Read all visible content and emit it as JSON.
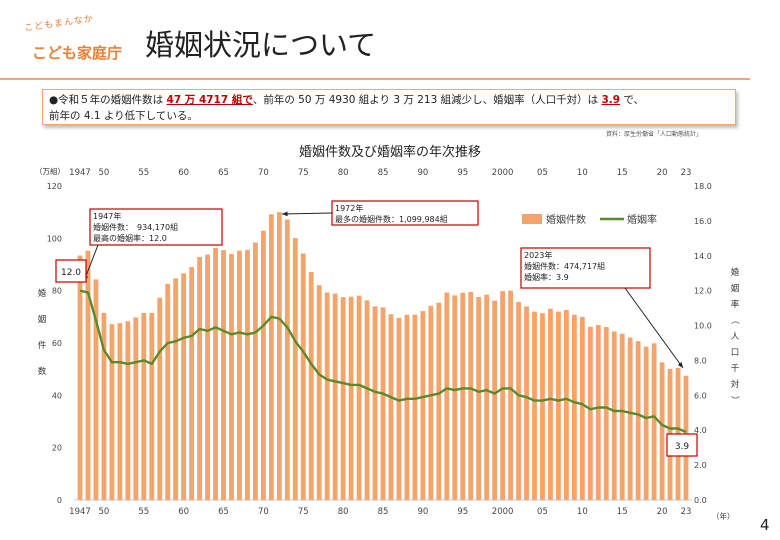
{
  "logo": {
    "arc_text": "こどもまんなか",
    "name": "こども家庭庁"
  },
  "page": {
    "title": "婚姻状況について",
    "number": "4"
  },
  "summary": {
    "bullet": "●",
    "part1": "令和５年の婚姻件数は",
    "highlight1": "47 万 4717 組で",
    "part2": "、前年の 50 万 4930 組より 3 万 213 組減少し、婚姻率（人口千対）は",
    "highlight2": "3.9",
    "part3": "で、",
    "line2": "前年の 4.1 より低下している。"
  },
  "source": "資料：厚生労働省「人口動態統計」",
  "chart_data": {
    "type": "bar",
    "title": "婚姻件数及び婚姻率の年次推移",
    "left_unit": "（万組）",
    "left_axis_label": "婚姻件数",
    "right_axis_label": "婚姻率（人口千対）",
    "x_unit": "（年）",
    "ylim_left": [
      0,
      120
    ],
    "ylim_right": [
      0.0,
      18.0
    ],
    "left_ticks": [
      "0",
      "20",
      "40",
      "60",
      "80",
      "100",
      "120"
    ],
    "right_ticks": [
      "0.0",
      "2.0",
      "4.0",
      "6.0",
      "8.0",
      "10.0",
      "12.0",
      "14.0",
      "16.0",
      "18.0"
    ],
    "x_tick_labels": [
      "1947",
      "50",
      "55",
      "60",
      "65",
      "70",
      "75",
      "80",
      "85",
      "90",
      "95",
      "2000",
      "05",
      "10",
      "15",
      "20",
      "23"
    ],
    "x_tick_years": [
      1947,
      1950,
      1955,
      1960,
      1965,
      1970,
      1975,
      1980,
      1985,
      1990,
      1995,
      2000,
      2005,
      2010,
      2015,
      2020,
      2023
    ],
    "legend": [
      {
        "name": "婚姻件数",
        "color": "#f4a46a"
      },
      {
        "name": "婚姻率",
        "color": "#5a8a2a"
      }
    ],
    "legend_position": "top-right",
    "bar_color": "#f4a46a",
    "line_color": "#5a8a2a",
    "years": [
      1947,
      1948,
      1949,
      1950,
      1951,
      1952,
      1953,
      1954,
      1955,
      1956,
      1957,
      1958,
      1959,
      1960,
      1961,
      1962,
      1963,
      1964,
      1965,
      1966,
      1967,
      1968,
      1969,
      1970,
      1971,
      1972,
      1973,
      1974,
      1975,
      1976,
      1977,
      1978,
      1979,
      1980,
      1981,
      1982,
      1983,
      1984,
      1985,
      1986,
      1987,
      1988,
      1989,
      1990,
      1991,
      1992,
      1993,
      1994,
      1995,
      1996,
      1997,
      1998,
      1999,
      2000,
      2001,
      2002,
      2003,
      2004,
      2005,
      2006,
      2007,
      2008,
      2009,
      2010,
      2011,
      2012,
      2013,
      2014,
      2015,
      2016,
      2017,
      2018,
      2019,
      2020,
      2021,
      2022,
      2023
    ],
    "marriages_man": [
      93.4,
      95.3,
      84.3,
      71.5,
      67.2,
      67.6,
      68.3,
      69.8,
      71.5,
      71.5,
      77.3,
      82.6,
      84.7,
      86.6,
      89.0,
      92.9,
      93.8,
      96.3,
      95.5,
      94.0,
      95.3,
      95.6,
      98.4,
      102.9,
      109.2,
      110.0,
      107.2,
      100.1,
      94.2,
      87.1,
      82.1,
      79.3,
      78.9,
      77.5,
      77.7,
      78.1,
      76.3,
      74.0,
      73.6,
      71.0,
      69.6,
      70.8,
      70.8,
      72.2,
      74.2,
      75.4,
      79.3,
      78.2,
      79.2,
      79.5,
      77.6,
      78.5,
      76.2,
      79.8,
      80.0,
      75.7,
      74.0,
      72.0,
      71.4,
      73.1,
      72.0,
      72.6,
      70.8,
      70.0,
      66.2,
      66.9,
      66.1,
      64.4,
      63.5,
      62.1,
      60.7,
      58.6,
      59.9,
      52.6,
      50.1,
      50.5,
      47.5
    ],
    "marriage_rate": [
      12.0,
      11.9,
      10.3,
      8.6,
      7.9,
      7.9,
      7.8,
      7.9,
      8.0,
      7.8,
      8.5,
      9.0,
      9.1,
      9.3,
      9.4,
      9.8,
      9.7,
      9.9,
      9.7,
      9.5,
      9.6,
      9.5,
      9.6,
      10.0,
      10.5,
      10.4,
      9.9,
      9.1,
      8.5,
      7.8,
      7.2,
      6.9,
      6.8,
      6.7,
      6.6,
      6.6,
      6.4,
      6.2,
      6.1,
      5.9,
      5.7,
      5.8,
      5.8,
      5.9,
      6.0,
      6.1,
      6.4,
      6.3,
      6.4,
      6.4,
      6.2,
      6.3,
      6.1,
      6.4,
      6.4,
      6.0,
      5.9,
      5.7,
      5.7,
      5.8,
      5.7,
      5.8,
      5.6,
      5.5,
      5.2,
      5.3,
      5.3,
      5.1,
      5.1,
      5.0,
      4.9,
      4.7,
      4.8,
      4.3,
      4.1,
      4.1,
      3.9
    ],
    "annotations": [
      {
        "id": "1947",
        "lines": [
          "1947年",
          "婚姻件数：　934,170組",
          "最高の婚姻率：12.0"
        ]
      },
      {
        "id": "1972",
        "lines": [
          "1972年",
          "最多の婚姻件数：1,099,984組"
        ]
      },
      {
        "id": "2023",
        "lines": [
          "2023年",
          "婚姻件数：474,717組",
          "婚姻率：3.9"
        ]
      }
    ],
    "value_labels": {
      "first_rate": "12.0",
      "last_rate": "3.9"
    }
  }
}
